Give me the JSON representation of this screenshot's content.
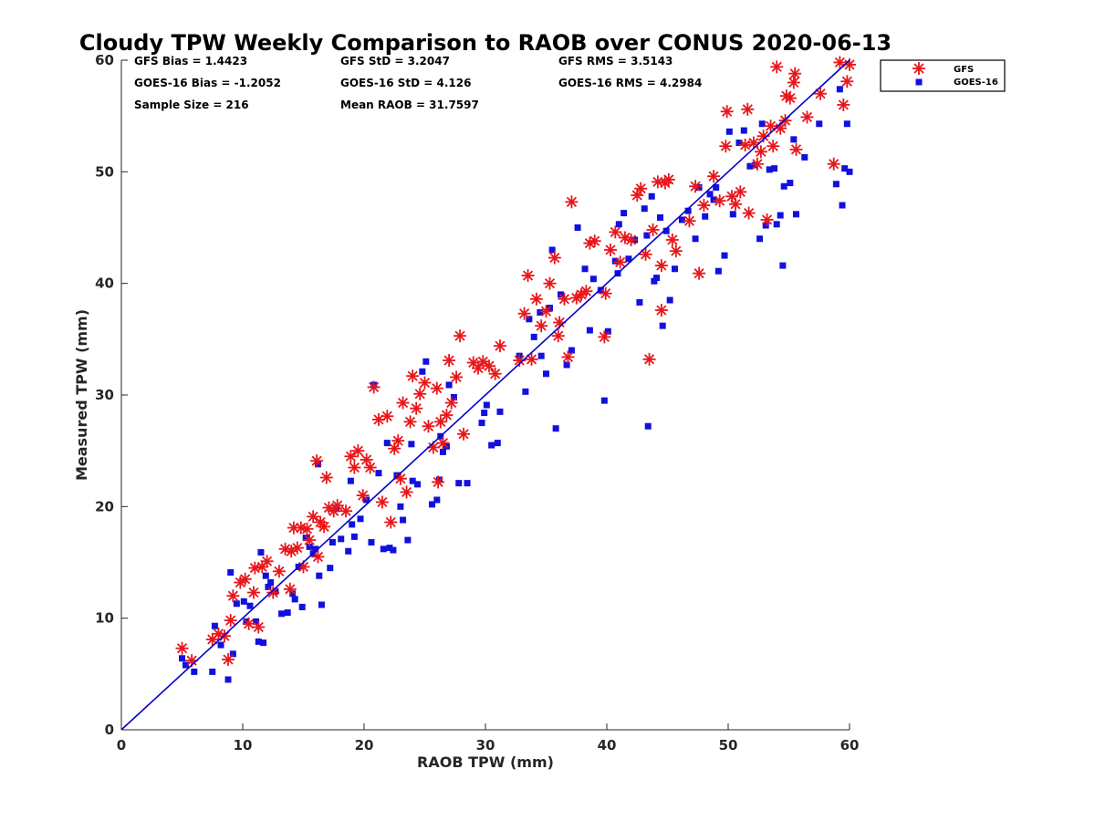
{
  "chart_data": {
    "type": "scatter",
    "title": "Cloudy TPW Weekly Comparison to RAOB over CONUS 2020-06-13",
    "xlabel": "RAOB TPW (mm)",
    "ylabel": "Measured TPW (mm)",
    "xlim": [
      0,
      60
    ],
    "ylim": [
      0,
      60
    ],
    "x_ticks": [
      "0",
      "10",
      "20",
      "30",
      "40",
      "50",
      "60"
    ],
    "y_ticks": [
      "0",
      "10",
      "20",
      "30",
      "40",
      "50",
      "60"
    ],
    "grid": false,
    "legend_position": "outside-top-right",
    "stats": {
      "gfs_bias": "GFS Bias = 1.4423",
      "goes_bias": "GOES-16 Bias = -1.2052",
      "sample_size": "Sample Size = 216",
      "gfs_std": "GFS StD = 3.2047",
      "goes_std": "GOES-16 StD = 4.126",
      "mean_raob": "Mean RAOB = 31.7597",
      "gfs_rms": "GFS RMS = 3.5143",
      "goes_rms": "GOES-16 RMS = 4.2984"
    },
    "reference_line": {
      "x": [
        0,
        60
      ],
      "y": [
        0,
        60
      ],
      "color": "#0000cc"
    },
    "series": [
      {
        "name": "GFS",
        "marker": "asterisk",
        "color": "#e8161a",
        "points": [
          [
            5.0,
            7.3
          ],
          [
            5.8,
            6.2
          ],
          [
            7.5,
            8.1
          ],
          [
            8.0,
            8.6
          ],
          [
            8.5,
            8.4
          ],
          [
            8.8,
            6.3
          ],
          [
            9.0,
            9.8
          ],
          [
            9.2,
            12.0
          ],
          [
            9.8,
            13.2
          ],
          [
            10.2,
            13.5
          ],
          [
            10.5,
            9.5
          ],
          [
            10.9,
            12.3
          ],
          [
            11.0,
            14.5
          ],
          [
            11.3,
            9.2
          ],
          [
            11.6,
            14.6
          ],
          [
            12.0,
            15.1
          ],
          [
            12.5,
            12.3
          ],
          [
            13.0,
            14.2
          ],
          [
            13.5,
            16.2
          ],
          [
            13.9,
            12.6
          ],
          [
            14.2,
            18.1
          ],
          [
            14.5,
            16.3
          ],
          [
            14.8,
            18.1
          ],
          [
            15.0,
            14.6
          ],
          [
            15.3,
            18.0
          ],
          [
            15.5,
            17.0
          ],
          [
            15.8,
            19.1
          ],
          [
            16.1,
            24.1
          ],
          [
            16.2,
            15.5
          ],
          [
            16.4,
            18.6
          ],
          [
            16.7,
            18.2
          ],
          [
            16.9,
            22.6
          ],
          [
            17.1,
            19.9
          ],
          [
            17.5,
            19.6
          ],
          [
            17.8,
            20.1
          ],
          [
            18.9,
            24.5
          ],
          [
            19.2,
            23.5
          ],
          [
            19.5,
            25.0
          ],
          [
            19.9,
            21.0
          ],
          [
            20.2,
            24.2
          ],
          [
            20.5,
            23.5
          ],
          [
            20.8,
            30.7
          ],
          [
            21.2,
            27.8
          ],
          [
            21.5,
            20.4
          ],
          [
            21.9,
            28.1
          ],
          [
            22.2,
            18.6
          ],
          [
            22.5,
            25.2
          ],
          [
            23.0,
            22.5
          ],
          [
            23.2,
            29.3
          ],
          [
            23.5,
            21.3
          ],
          [
            23.8,
            27.6
          ],
          [
            24.0,
            31.7
          ],
          [
            24.3,
            28.8
          ],
          [
            24.6,
            30.1
          ],
          [
            25.0,
            31.1
          ],
          [
            25.3,
            27.2
          ],
          [
            25.7,
            25.3
          ],
          [
            26.0,
            30.6
          ],
          [
            26.1,
            22.2
          ],
          [
            26.3,
            27.6
          ],
          [
            26.5,
            25.7
          ],
          [
            26.8,
            28.2
          ],
          [
            27.0,
            33.1
          ],
          [
            27.2,
            29.3
          ],
          [
            27.6,
            31.6
          ],
          [
            27.9,
            35.3
          ],
          [
            28.2,
            26.5
          ],
          [
            29.0,
            32.9
          ],
          [
            29.4,
            32.4
          ],
          [
            29.8,
            33.0
          ],
          [
            30.3,
            32.6
          ],
          [
            30.8,
            31.9
          ],
          [
            31.2,
            34.4
          ],
          [
            33.2,
            37.3
          ],
          [
            33.5,
            40.7
          ],
          [
            33.8,
            33.2
          ],
          [
            34.2,
            38.6
          ],
          [
            34.6,
            36.2
          ],
          [
            35.0,
            37.5
          ],
          [
            35.3,
            40.0
          ],
          [
            35.7,
            42.3
          ],
          [
            36.1,
            36.5
          ],
          [
            36.5,
            38.6
          ],
          [
            36.8,
            33.4
          ],
          [
            37.1,
            47.3
          ],
          [
            37.5,
            38.7
          ],
          [
            37.9,
            39.0
          ],
          [
            38.3,
            39.3
          ],
          [
            38.6,
            43.6
          ],
          [
            39.0,
            43.8
          ],
          [
            39.9,
            39.1
          ],
          [
            40.3,
            43.0
          ],
          [
            40.7,
            44.6
          ],
          [
            41.1,
            41.9
          ],
          [
            41.5,
            44.1
          ],
          [
            42.0,
            43.9
          ],
          [
            42.5,
            47.9
          ],
          [
            42.8,
            48.5
          ],
          [
            43.2,
            42.6
          ],
          [
            43.5,
            33.2
          ],
          [
            43.8,
            44.8
          ],
          [
            44.2,
            49.1
          ],
          [
            44.5,
            37.6
          ],
          [
            44.8,
            49.0
          ],
          [
            45.1,
            49.3
          ],
          [
            45.4,
            43.9
          ],
          [
            45.7,
            42.9
          ],
          [
            39.8,
            35.2
          ],
          [
            44.5,
            41.6
          ],
          [
            46.8,
            45.6
          ],
          [
            47.3,
            48.7
          ],
          [
            47.6,
            40.9
          ],
          [
            48.0,
            47.0
          ],
          [
            48.8,
            49.6
          ],
          [
            49.3,
            47.4
          ],
          [
            49.8,
            52.3
          ],
          [
            49.9,
            55.4
          ],
          [
            50.3,
            47.8
          ],
          [
            50.6,
            47.1
          ],
          [
            51.0,
            48.2
          ],
          [
            51.4,
            52.4
          ],
          [
            51.6,
            55.6
          ],
          [
            51.7,
            46.3
          ],
          [
            52.1,
            52.6
          ],
          [
            52.4,
            50.7
          ],
          [
            52.7,
            51.8
          ],
          [
            52.9,
            53.2
          ],
          [
            53.2,
            45.7
          ],
          [
            53.5,
            54.1
          ],
          [
            53.7,
            52.3
          ],
          [
            54.0,
            59.4
          ],
          [
            54.3,
            53.9
          ],
          [
            54.7,
            54.6
          ],
          [
            55.1,
            56.6
          ],
          [
            55.5,
            58.8
          ],
          [
            55.6,
            52.0
          ],
          [
            56.5,
            54.9
          ],
          [
            57.6,
            57.0
          ],
          [
            58.7,
            50.7
          ],
          [
            59.2,
            59.8
          ],
          [
            59.5,
            56.0
          ],
          [
            59.8,
            58.1
          ],
          [
            60.0,
            59.6
          ],
          [
            32.8,
            33.1
          ],
          [
            36.0,
            35.3
          ],
          [
            54.8,
            56.8
          ],
          [
            55.4,
            58.0
          ],
          [
            18.5,
            19.6
          ],
          [
            22.8,
            25.9
          ],
          [
            14.0,
            16.0
          ]
        ]
      },
      {
        "name": "GOES-16",
        "marker": "square",
        "color": "#1010e0",
        "points": [
          [
            5.0,
            6.4
          ],
          [
            5.3,
            5.8
          ],
          [
            6.0,
            5.2
          ],
          [
            7.5,
            5.2
          ],
          [
            7.7,
            9.3
          ],
          [
            8.2,
            7.6
          ],
          [
            8.8,
            4.5
          ],
          [
            9.0,
            14.1
          ],
          [
            9.2,
            6.8
          ],
          [
            9.5,
            11.3
          ],
          [
            10.1,
            11.5
          ],
          [
            10.3,
            9.7
          ],
          [
            10.6,
            11.1
          ],
          [
            11.1,
            9.7
          ],
          [
            11.3,
            7.9
          ],
          [
            11.5,
            15.9
          ],
          [
            11.7,
            7.8
          ],
          [
            11.9,
            13.8
          ],
          [
            12.3,
            13.2
          ],
          [
            12.7,
            12.4
          ],
          [
            13.2,
            10.4
          ],
          [
            13.7,
            10.5
          ],
          [
            14.1,
            12.2
          ],
          [
            14.3,
            11.7
          ],
          [
            14.6,
            14.6
          ],
          [
            14.9,
            11.0
          ],
          [
            15.2,
            17.2
          ],
          [
            15.5,
            16.4
          ],
          [
            15.8,
            15.8
          ],
          [
            16.2,
            23.8
          ],
          [
            16.3,
            13.8
          ],
          [
            16.5,
            11.2
          ],
          [
            17.2,
            14.5
          ],
          [
            17.4,
            16.8
          ],
          [
            17.7,
            19.8
          ],
          [
            18.1,
            17.1
          ],
          [
            18.7,
            16.0
          ],
          [
            18.9,
            22.3
          ],
          [
            19.0,
            18.4
          ],
          [
            19.2,
            17.3
          ],
          [
            19.7,
            18.9
          ],
          [
            20.2,
            20.6
          ],
          [
            20.6,
            16.8
          ],
          [
            20.8,
            30.9
          ],
          [
            21.2,
            23.0
          ],
          [
            21.6,
            16.2
          ],
          [
            21.9,
            25.7
          ],
          [
            22.1,
            16.3
          ],
          [
            22.4,
            16.1
          ],
          [
            22.7,
            22.8
          ],
          [
            23.0,
            20.0
          ],
          [
            23.2,
            18.8
          ],
          [
            23.6,
            17.0
          ],
          [
            23.9,
            25.6
          ],
          [
            24.0,
            22.3
          ],
          [
            24.4,
            22.0
          ],
          [
            24.8,
            32.1
          ],
          [
            25.1,
            33.0
          ],
          [
            25.6,
            20.2
          ],
          [
            26.0,
            20.6
          ],
          [
            26.2,
            22.4
          ],
          [
            26.5,
            24.9
          ],
          [
            26.8,
            25.4
          ],
          [
            27.0,
            30.9
          ],
          [
            27.4,
            29.8
          ],
          [
            27.8,
            22.1
          ],
          [
            28.5,
            22.1
          ],
          [
            29.7,
            27.5
          ],
          [
            29.9,
            28.4
          ],
          [
            30.5,
            25.5
          ],
          [
            31.0,
            25.7
          ],
          [
            31.2,
            28.5
          ],
          [
            32.8,
            33.5
          ],
          [
            33.3,
            30.3
          ],
          [
            33.6,
            36.8
          ],
          [
            34.0,
            35.2
          ],
          [
            34.6,
            33.5
          ],
          [
            35.0,
            31.9
          ],
          [
            35.3,
            37.8
          ],
          [
            35.5,
            43.0
          ],
          [
            35.8,
            27.0
          ],
          [
            36.2,
            39.0
          ],
          [
            36.7,
            32.7
          ],
          [
            37.1,
            34.0
          ],
          [
            37.6,
            45.0
          ],
          [
            38.2,
            41.3
          ],
          [
            38.6,
            35.8
          ],
          [
            38.9,
            40.4
          ],
          [
            39.5,
            39.4
          ],
          [
            39.8,
            29.5
          ],
          [
            40.1,
            35.7
          ],
          [
            40.7,
            42.0
          ],
          [
            41.0,
            45.3
          ],
          [
            41.4,
            46.3
          ],
          [
            41.8,
            42.2
          ],
          [
            42.3,
            43.9
          ],
          [
            42.7,
            38.3
          ],
          [
            43.1,
            46.7
          ],
          [
            43.4,
            27.2
          ],
          [
            43.7,
            47.8
          ],
          [
            43.9,
            40.2
          ],
          [
            44.1,
            40.5
          ],
          [
            44.4,
            45.9
          ],
          [
            44.6,
            36.2
          ],
          [
            44.9,
            44.7
          ],
          [
            45.2,
            38.5
          ],
          [
            45.6,
            41.3
          ],
          [
            46.2,
            45.7
          ],
          [
            46.7,
            46.5
          ],
          [
            47.3,
            44.0
          ],
          [
            47.6,
            48.6
          ],
          [
            48.1,
            46.0
          ],
          [
            48.5,
            48.0
          ],
          [
            49.0,
            48.6
          ],
          [
            49.2,
            41.1
          ],
          [
            49.7,
            42.5
          ],
          [
            50.1,
            53.6
          ],
          [
            50.4,
            46.2
          ],
          [
            50.9,
            52.6
          ],
          [
            51.3,
            53.7
          ],
          [
            51.8,
            50.5
          ],
          [
            52.2,
            50.6
          ],
          [
            52.6,
            44.0
          ],
          [
            52.8,
            54.3
          ],
          [
            53.1,
            45.2
          ],
          [
            53.4,
            50.2
          ],
          [
            53.8,
            50.3
          ],
          [
            54.0,
            45.3
          ],
          [
            54.3,
            46.1
          ],
          [
            54.6,
            48.7
          ],
          [
            54.5,
            41.6
          ],
          [
            55.1,
            49.0
          ],
          [
            55.4,
            52.9
          ],
          [
            55.6,
            46.2
          ],
          [
            56.3,
            51.3
          ],
          [
            57.5,
            54.3
          ],
          [
            58.9,
            48.9
          ],
          [
            59.2,
            57.4
          ],
          [
            59.4,
            47.0
          ],
          [
            59.6,
            50.3
          ],
          [
            59.8,
            54.3
          ],
          [
            60.0,
            50.0
          ],
          [
            43.3,
            44.3
          ],
          [
            48.8,
            47.5
          ],
          [
            16.0,
            16.2
          ],
          [
            12.1,
            12.8
          ],
          [
            26.3,
            26.3
          ],
          [
            34.5,
            37.4
          ],
          [
            40.9,
            40.9
          ],
          [
            30.1,
            29.1
          ]
        ]
      }
    ]
  }
}
